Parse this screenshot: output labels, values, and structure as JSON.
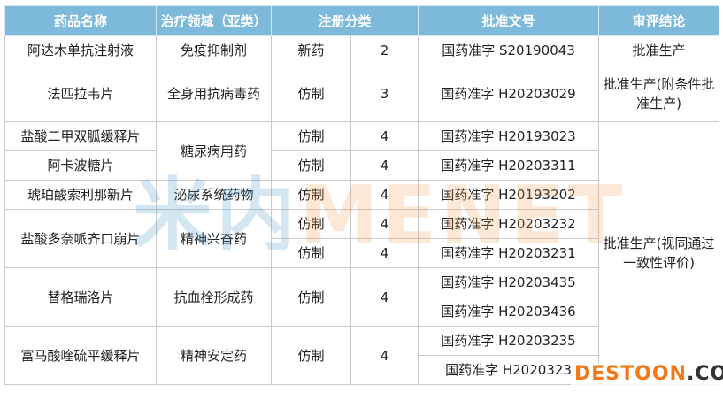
{
  "colors": {
    "header_bg": "#7cb9da",
    "header_text": "#ffffff",
    "border": "#c9c9c9",
    "watermark_orange": "#f07a1a"
  },
  "table": {
    "headers": [
      {
        "text": "药品名称"
      },
      {
        "text": "治疗领域（亚类）"
      },
      {
        "text": "注册分类",
        "colspan": 2
      },
      {
        "text": "批准文号"
      },
      {
        "text": "审评结论"
      }
    ],
    "rows": [
      {
        "cells": [
          {
            "text": "阿达木单抗注射液"
          },
          {
            "text": "免疫抑制剂"
          },
          {
            "text": "新药"
          },
          {
            "text": "2"
          },
          {
            "text": "国药准字 S20190043"
          },
          {
            "text": "批准生产"
          }
        ]
      },
      {
        "tall": true,
        "cells": [
          {
            "text": "法匹拉韦片"
          },
          {
            "text": "全身用抗病毒药"
          },
          {
            "text": "仿制"
          },
          {
            "text": "3"
          },
          {
            "text": "国药准字 H20203029"
          },
          {
            "text": "批准生产(附条件批准生产)"
          }
        ]
      },
      {
        "cells": [
          {
            "text": "盐酸二甲双胍缓释片"
          },
          {
            "text": "糖尿病用药",
            "rowspan": 2
          },
          {
            "text": "仿制"
          },
          {
            "text": "4"
          },
          {
            "text": "国药准字 H20193023"
          },
          {
            "text": "批准生产(视同通过一致性评价)",
            "rowspan": 9
          }
        ]
      },
      {
        "cells": [
          {
            "text": "阿卡波糖片"
          },
          {
            "text": "仿制"
          },
          {
            "text": "4"
          },
          {
            "text": "国药准字 H20203311"
          }
        ]
      },
      {
        "cells": [
          {
            "text": "琥珀酸索利那新片"
          },
          {
            "text": "泌尿系统药物"
          },
          {
            "text": "仿制"
          },
          {
            "text": "4"
          },
          {
            "text": "国药准字 H20193202"
          }
        ]
      },
      {
        "cells": [
          {
            "text": "盐酸多奈哌齐口崩片",
            "rowspan": 2
          },
          {
            "text": "精神兴奋药",
            "rowspan": 2
          },
          {
            "text": "仿制"
          },
          {
            "text": "4"
          },
          {
            "text": "国药准字 H20203232"
          }
        ]
      },
      {
        "cells": [
          {
            "text": "仿制"
          },
          {
            "text": "4"
          },
          {
            "text": "国药准字 H20203231"
          }
        ]
      },
      {
        "cells": [
          {
            "text": "替格瑞洛片",
            "rowspan": 2
          },
          {
            "text": "抗血栓形成药",
            "rowspan": 2
          },
          {
            "text": "仿制",
            "rowspan": 2
          },
          {
            "text": "4",
            "rowspan": 2
          },
          {
            "text": "国药准字 H20203435"
          }
        ]
      },
      {
        "cells": [
          {
            "text": "国药准字 H20203436"
          }
        ]
      },
      {
        "cells": [
          {
            "text": "富马酸喹硫平缓释片",
            "rowspan": 2
          },
          {
            "text": "精神安定药",
            "rowspan": 2
          },
          {
            "text": "仿制",
            "rowspan": 2
          },
          {
            "text": "4",
            "rowspan": 2
          },
          {
            "text": "国药准字 H20203235"
          }
        ]
      },
      {
        "cells": [
          {
            "text": "国药准字 H2020323"
          }
        ]
      }
    ]
  },
  "watermarks": {
    "center_a": "米内",
    "center_b": "MENET",
    "corner_a": "DESTOON",
    "corner_b": ".COM"
  }
}
